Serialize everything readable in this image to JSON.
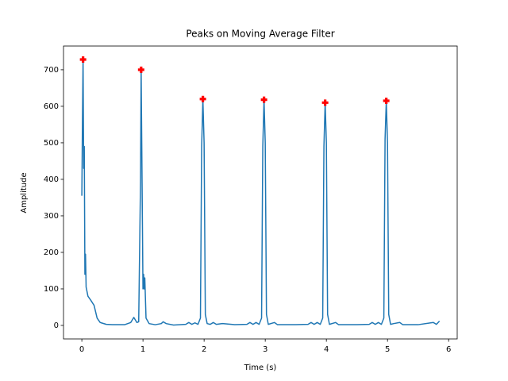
{
  "chart_data": {
    "type": "line",
    "title": "Peaks on Moving Average Filter",
    "x_label": "Time (s)",
    "y_label": "Amplitude",
    "xlim": [
      -0.3,
      6.14
    ],
    "ylim": [
      -37,
      765
    ],
    "xticks": [
      0,
      1,
      2,
      3,
      4,
      5,
      6
    ],
    "yticks": [
      0,
      100,
      200,
      300,
      400,
      500,
      600,
      700
    ],
    "series": [
      {
        "color": "#1f77b4",
        "marker": "none",
        "x": [
          0,
          0.01,
          0.02,
          0.03,
          0.04,
          0.05,
          0.06,
          0.07,
          0.1,
          0.15,
          0.2,
          0.25,
          0.3,
          0.4,
          0.5,
          0.7,
          0.8,
          0.85,
          0.9,
          0.93,
          0.96,
          0.97,
          0.98,
          1.0,
          1.01,
          1.02,
          1.03,
          1.05,
          1.1,
          1.2,
          1.3,
          1.33,
          1.38,
          1.5,
          1.7,
          1.75,
          1.8,
          1.85,
          1.9,
          1.94,
          1.96,
          1.98,
          2.0,
          2.02,
          2.05,
          2.1,
          2.15,
          2.2,
          2.3,
          2.5,
          2.7,
          2.75,
          2.8,
          2.85,
          2.9,
          2.94,
          2.96,
          2.98,
          3.0,
          3.02,
          3.05,
          3.15,
          3.2,
          3.5,
          3.7,
          3.75,
          3.8,
          3.85,
          3.9,
          3.94,
          3.96,
          3.98,
          4.0,
          4.02,
          4.05,
          4.15,
          4.2,
          4.5,
          4.7,
          4.75,
          4.8,
          4.85,
          4.9,
          4.94,
          4.96,
          4.98,
          5.0,
          5.02,
          5.05,
          5.1,
          5.2,
          5.25,
          5.5,
          5.75,
          5.8,
          5.85
        ],
        "values": [
          355,
          560,
          728,
          430,
          490,
          140,
          195,
          105,
          80,
          68,
          55,
          20,
          8,
          3,
          2,
          2,
          8,
          22,
          8,
          10,
          400,
          700,
          500,
          100,
          140,
          100,
          130,
          20,
          5,
          2,
          5,
          10,
          5,
          1,
          3,
          8,
          3,
          7,
          3,
          20,
          490,
          620,
          500,
          30,
          5,
          3,
          8,
          3,
          5,
          2,
          3,
          8,
          3,
          8,
          3,
          20,
          490,
          618,
          500,
          30,
          3,
          8,
          2,
          2,
          3,
          8,
          3,
          8,
          3,
          20,
          490,
          610,
          500,
          30,
          3,
          8,
          2,
          2,
          3,
          8,
          3,
          8,
          3,
          20,
          510,
          615,
          500,
          30,
          3,
          5,
          8,
          2,
          2,
          8,
          3,
          12
        ]
      },
      {
        "color": "#ff0000",
        "marker": "plus",
        "x": [
          0.02,
          0.97,
          1.98,
          2.98,
          3.98,
          4.98
        ],
        "values": [
          728,
          700,
          620,
          618,
          610,
          615
        ]
      }
    ]
  }
}
